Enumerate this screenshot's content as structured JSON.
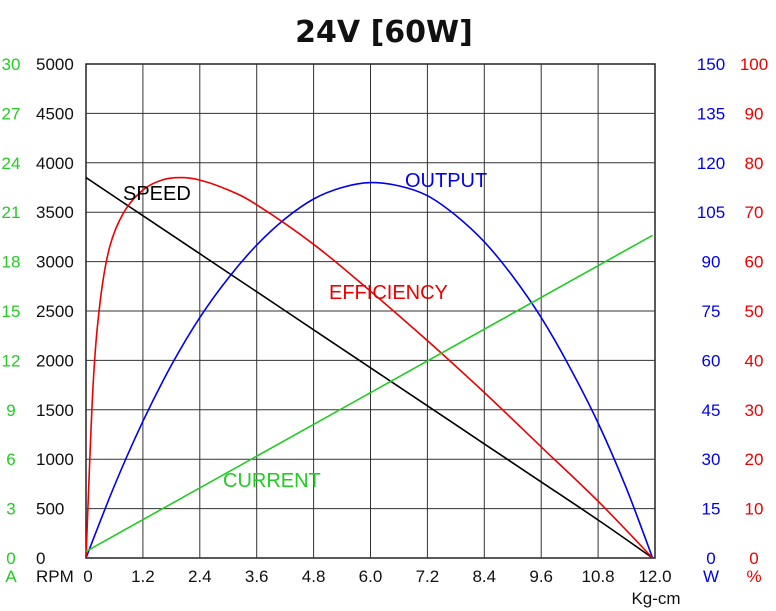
{
  "chart_data": {
    "type": "line",
    "title": "24V [60W]",
    "xlabel": "Kg-cm",
    "xlim": [
      0,
      12.0
    ],
    "x_ticks": [
      "0",
      "1.2",
      "2.4",
      "3.6",
      "4.8",
      "6.0",
      "7.2",
      "8.4",
      "9.6",
      "10.8",
      "12.0"
    ],
    "grid": true,
    "axes": {
      "current": {
        "unit": "A",
        "range": [
          0,
          30
        ],
        "ticks": [
          "0",
          "3",
          "6",
          "9",
          "12",
          "15",
          "18",
          "21",
          "24",
          "27",
          "30"
        ],
        "color": "#22cc22"
      },
      "speed": {
        "unit": "RPM",
        "range": [
          0,
          5000
        ],
        "ticks": [
          "0",
          "500",
          "1000",
          "1500",
          "2000",
          "2500",
          "3000",
          "3500",
          "4000",
          "4500",
          "5000"
        ],
        "color": "#111111"
      },
      "output": {
        "unit": "W",
        "range": [
          0,
          150
        ],
        "ticks": [
          "0",
          "15",
          "30",
          "45",
          "60",
          "75",
          "90",
          "105",
          "120",
          "135",
          "150"
        ],
        "color": "#0000ee"
      },
      "efficiency": {
        "unit": "%",
        "range": [
          0,
          100
        ],
        "ticks": [
          "0",
          "10",
          "20",
          "30",
          "40",
          "50",
          "60",
          "70",
          "80",
          "90",
          "100"
        ],
        "color": "#ee0000"
      }
    },
    "series": [
      {
        "name": "SPEED",
        "axis": "speed",
        "color": "#000000",
        "x": [
          0,
          1.2,
          2.4,
          3.6,
          4.8,
          6.0,
          7.2,
          8.4,
          9.6,
          10.8,
          11.95
        ],
        "y": [
          3850,
          3465,
          3080,
          2695,
          2310,
          1925,
          1540,
          1155,
          770,
          385,
          0
        ]
      },
      {
        "name": "OUTPUT",
        "axis": "output",
        "color": "#0000ee",
        "x": [
          0,
          0.6,
          1.2,
          1.8,
          2.4,
          3.0,
          3.6,
          4.2,
          4.8,
          5.4,
          6.0,
          6.6,
          7.2,
          7.8,
          8.4,
          9.0,
          9.6,
          10.2,
          10.8,
          11.4,
          11.95
        ],
        "y": [
          0,
          22,
          41.5,
          58.5,
          73,
          85,
          95,
          103,
          109,
          112.5,
          114,
          113,
          110,
          104,
          96,
          85.5,
          73,
          58,
          41,
          21,
          0
        ]
      },
      {
        "name": "EFFICIENCY",
        "axis": "efficiency",
        "color": "#ee0000",
        "x": [
          0,
          0.15,
          0.3,
          0.5,
          0.8,
          1.2,
          1.6,
          2.0,
          2.4,
          3.0,
          3.6,
          4.8,
          6.0,
          7.2,
          8.4,
          9.6,
          10.8,
          11.95
        ],
        "y": [
          0,
          35,
          52,
          63,
          70,
          74.5,
          76.5,
          77,
          76.5,
          74.5,
          71.5,
          63.5,
          54,
          44,
          33.5,
          22.5,
          11.5,
          0
        ]
      },
      {
        "name": "CURRENT",
        "axis": "current",
        "color": "#22cc22",
        "x": [
          0,
          11.95
        ],
        "y": [
          0.4,
          19.6
        ]
      }
    ]
  }
}
